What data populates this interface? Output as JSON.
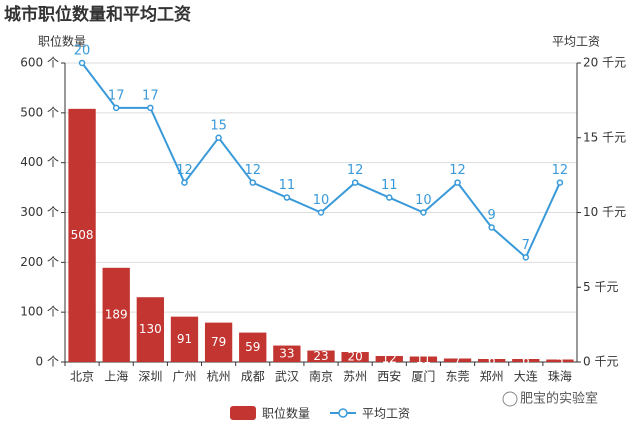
{
  "chart_data": {
    "type": "bar_line",
    "title": "城市职位数量和平均工资",
    "ylabel": "职位数量",
    "y2label": "平均工资",
    "categories": [
      "北京",
      "上海",
      "深圳",
      "广州",
      "杭州",
      "成都",
      "武汉",
      "南京",
      "苏州",
      "西安",
      "厦门",
      "东莞",
      "郑州",
      "大连",
      "珠海"
    ],
    "series": [
      {
        "name": "职位数量",
        "type": "bar",
        "color": "#c23531",
        "values": [
          508,
          189,
          130,
          91,
          79,
          59,
          33,
          23,
          20,
          12,
          11,
          7,
          6,
          6,
          5
        ]
      },
      {
        "name": "平均工资",
        "type": "line",
        "axis": "y2",
        "color": "#3a9ad9",
        "values": [
          20,
          17,
          17,
          12,
          15,
          12,
          11,
          10,
          12,
          11,
          10,
          12,
          9,
          7,
          12
        ]
      }
    ],
    "ylim": [
      0,
      600
    ],
    "yticks": [
      {
        "value": 0,
        "label": "0 个"
      },
      {
        "value": 100,
        "label": "100 个"
      },
      {
        "value": 200,
        "label": "200 个"
      },
      {
        "value": 300,
        "label": "300 个"
      },
      {
        "value": 400,
        "label": "400 个"
      },
      {
        "value": 500,
        "label": "500 个"
      },
      {
        "value": 600,
        "label": "600 个"
      }
    ],
    "y2lim": [
      0,
      20
    ],
    "y2ticks": [
      {
        "value": 0,
        "label": "0 千元"
      },
      {
        "value": 5,
        "label": "5 千元"
      },
      {
        "value": 10,
        "label": "10 千元"
      },
      {
        "value": 15,
        "label": "15 千元"
      },
      {
        "value": 20,
        "label": "20 千元"
      }
    ],
    "grid": true,
    "watermark": "肥宝的实验室"
  }
}
